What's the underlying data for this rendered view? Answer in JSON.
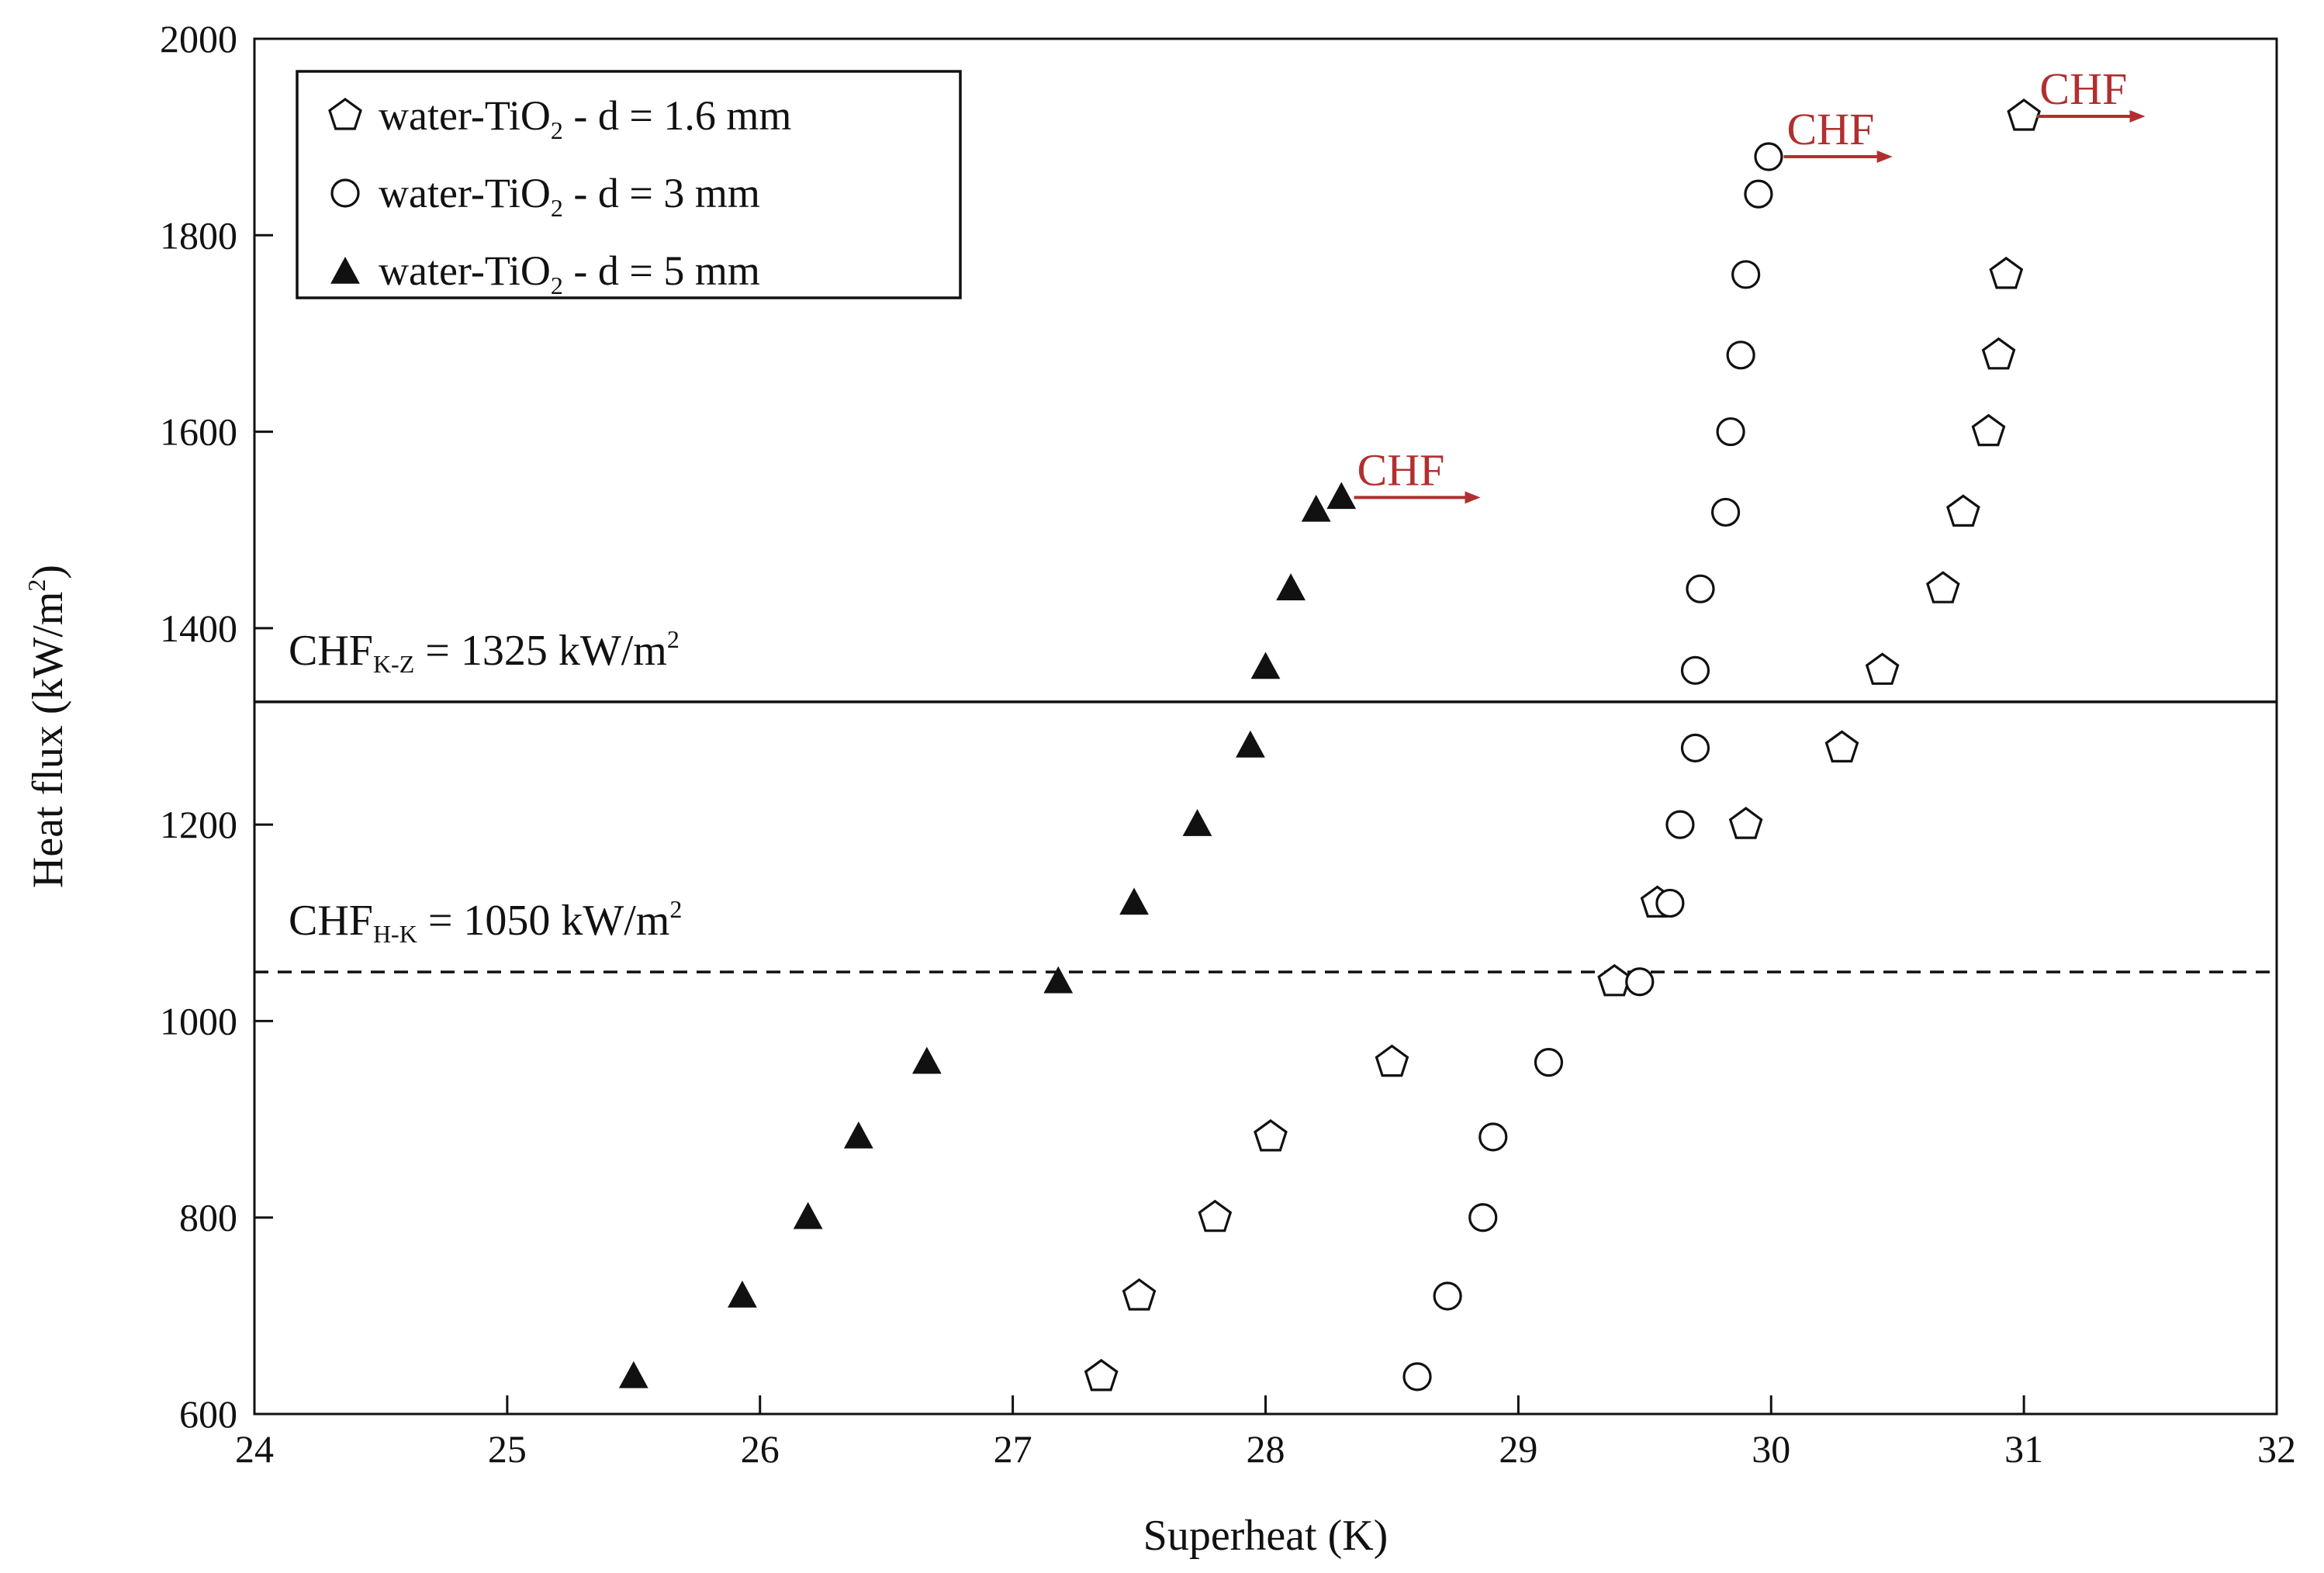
{
  "chart_data": {
    "type": "scatter",
    "xlabel": "Superheat (K)",
    "ylabel_parts": {
      "main": "Heat flux (kW/m",
      "sup": "2",
      "end": ")"
    },
    "xlim": [
      24,
      32
    ],
    "ylim": [
      600,
      2000
    ],
    "x_ticks": [
      24,
      25,
      26,
      27,
      28,
      29,
      30,
      31,
      32
    ],
    "y_ticks": [
      600,
      800,
      1000,
      1200,
      1400,
      1600,
      1800,
      2000
    ],
    "legend_position": "top-left",
    "series": [
      {
        "name": "water-TiO2 - d = 1.6 mm",
        "legend_parts": {
          "pre": "water-TiO",
          "sub": "2",
          "post": " - d = 1.6 mm"
        },
        "marker": "pentagon-open",
        "x": [
          27.35,
          27.5,
          27.8,
          28.02,
          28.5,
          29.38,
          29.55,
          29.9,
          30.28,
          30.44,
          30.68,
          30.76,
          30.86,
          30.9,
          30.93,
          31.0
        ],
        "y": [
          638,
          720,
          800,
          882,
          958,
          1040,
          1120,
          1200,
          1278,
          1357,
          1440,
          1518,
          1600,
          1678,
          1760,
          1921
        ]
      },
      {
        "name": "water-TiO2 - d = 3 mm",
        "legend_parts": {
          "pre": "water-TiO",
          "sub": "2",
          "post": " - d = 3 mm"
        },
        "marker": "circle-open",
        "x": [
          28.6,
          28.72,
          28.86,
          28.9,
          29.12,
          29.48,
          29.6,
          29.64,
          29.7,
          29.7,
          29.72,
          29.82,
          29.84,
          29.88,
          29.9,
          29.95,
          29.99
        ],
        "y": [
          638,
          720,
          800,
          882,
          958,
          1040,
          1120,
          1200,
          1278,
          1357,
          1440,
          1518,
          1600,
          1678,
          1760,
          1842,
          1880
        ]
      },
      {
        "name": "water-TiO2 - d = 5 mm",
        "legend_parts": {
          "pre": "water-TiO",
          "sub": "2",
          "post": " - d = 5 mm"
        },
        "marker": "triangle-filled",
        "x": [
          25.5,
          25.93,
          26.19,
          26.39,
          26.66,
          27.18,
          27.48,
          27.73,
          27.94,
          28.0,
          28.1,
          28.2,
          28.3
        ],
        "y": [
          638,
          720,
          800,
          882,
          958,
          1040,
          1120,
          1200,
          1280,
          1360,
          1440,
          1520,
          1533
        ]
      }
    ],
    "reference_lines": [
      {
        "name": "CHF K-Z",
        "y": 1325,
        "style": "solid",
        "label_pre": "CHF",
        "label_sub": "K-Z",
        "label_post": " = 1325 kW/m",
        "label_sup": "2"
      },
      {
        "name": "CHF H-K",
        "y": 1050,
        "style": "dashed",
        "label_pre": "CHF",
        "label_sub": "H-K",
        "label_post": " = 1050 kW/m",
        "label_sup": "2"
      }
    ],
    "annotations": [
      {
        "text": "CHF",
        "x": 28.35,
        "y": 1533,
        "arrow_to_x": 28.85
      },
      {
        "text": "CHF",
        "x": 30.05,
        "y": 1880,
        "arrow_to_x": 30.48
      },
      {
        "text": "CHF",
        "x": 31.05,
        "y": 1921,
        "arrow_to_x": 31.48
      }
    ],
    "colors": {
      "axis": "#111111",
      "marker": "#111111",
      "chf_annotation": "#b03030"
    }
  }
}
